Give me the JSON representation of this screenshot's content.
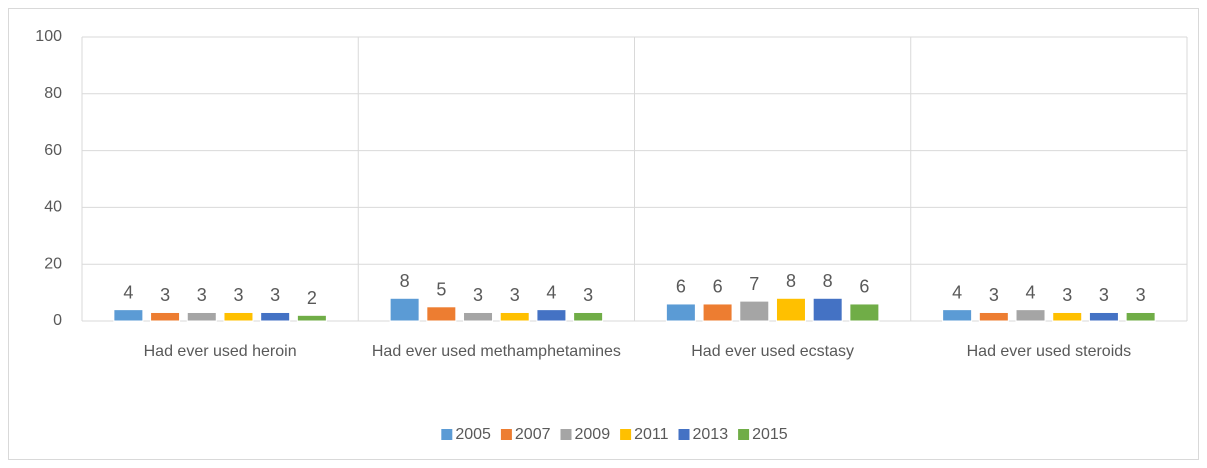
{
  "chart_data": {
    "type": "bar",
    "categories": [
      "Had ever used heroin",
      "Had ever used methamphetamines",
      "Had ever used ecstasy",
      "Had ever used steroids"
    ],
    "series": [
      {
        "name": "2005",
        "color": "#5b9bd5",
        "values": [
          4,
          8,
          6,
          4
        ]
      },
      {
        "name": "2007",
        "color": "#ed7d31",
        "values": [
          3,
          5,
          6,
          3
        ]
      },
      {
        "name": "2009",
        "color": "#a5a5a5",
        "values": [
          3,
          3,
          7,
          4
        ]
      },
      {
        "name": "2011",
        "color": "#ffc000",
        "values": [
          3,
          3,
          8,
          3
        ]
      },
      {
        "name": "2013",
        "color": "#4472c4",
        "values": [
          3,
          4,
          8,
          3
        ]
      },
      {
        "name": "2015",
        "color": "#70ad47",
        "values": [
          2,
          3,
          6,
          3
        ]
      }
    ],
    "ylim": [
      0,
      100
    ],
    "yticks": [
      0,
      20,
      40,
      60,
      80,
      100
    ],
    "grid": true,
    "legend": "bottom"
  }
}
